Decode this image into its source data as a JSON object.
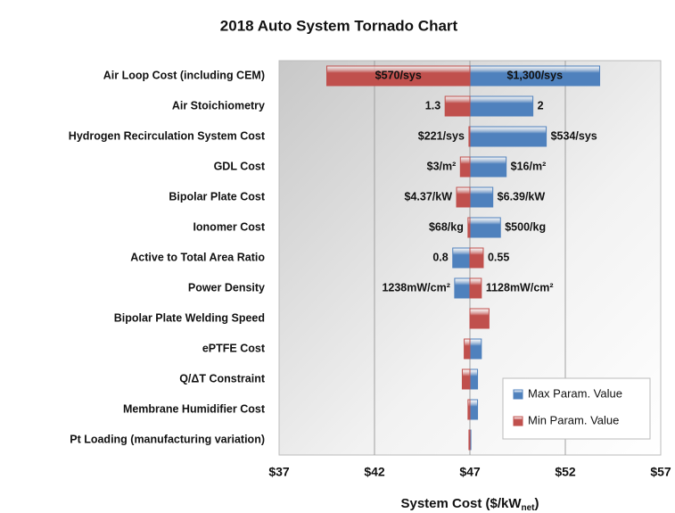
{
  "chart_data": {
    "type": "tornado",
    "title": "2018 Auto System Tornado Chart",
    "categories": [
      "Air Loop Cost (including CEM)",
      "Air Stoichiometry",
      "Hydrogen Recirculation System Cost",
      "GDL Cost",
      "Bipolar Plate Cost",
      "Ionomer Cost",
      "Active to Total Area Ratio",
      "Power Density",
      "Bipolar Plate Welding Speed",
      "ePTFE Cost",
      "Q/ΔT Constraint",
      "Membrane Humidifier Cost",
      "Pt Loading (manufacturing variation)"
    ],
    "base": 47,
    "series": [
      {
        "name": "Max Param. Value",
        "color": "#4f81bd",
        "values": [
          53.8,
          50.3,
          51.0,
          48.9,
          48.2,
          48.6,
          46.1,
          46.2,
          47,
          47.6,
          47.4,
          47.4,
          47.05
        ],
        "value_labels": [
          "$1,300/sys",
          "2",
          "$534/sys",
          "$16/m²",
          "$6.39/kW",
          "$500/kg",
          "0.8",
          "1238mW/cm²",
          null,
          null,
          null,
          null,
          null
        ]
      },
      {
        "name": "Min Param. Value",
        "color": "#c0504d",
        "values": [
          39.5,
          45.7,
          46.95,
          46.5,
          46.3,
          46.9,
          47.7,
          47.6,
          48.0,
          46.7,
          46.6,
          46.9,
          46.95
        ],
        "value_labels": [
          "$570/sys",
          "1.3",
          "$221/sys",
          "$3/m²",
          "$4.37/kW",
          "$68/kg",
          "0.55",
          "1128mW/cm²",
          null,
          null,
          null,
          null,
          null
        ]
      }
    ],
    "xlim": [
      37,
      57
    ],
    "xticks": [
      {
        "value": 37,
        "label": "$37"
      },
      {
        "value": 42,
        "label": "$42"
      },
      {
        "value": 47,
        "label": "$47"
      },
      {
        "value": 52,
        "label": "$52"
      },
      {
        "value": 57,
        "label": "$57"
      }
    ],
    "xlabel": [
      "System Cost ($/kW",
      "net",
      ")"
    ],
    "grid": true,
    "legend": "lower right"
  }
}
